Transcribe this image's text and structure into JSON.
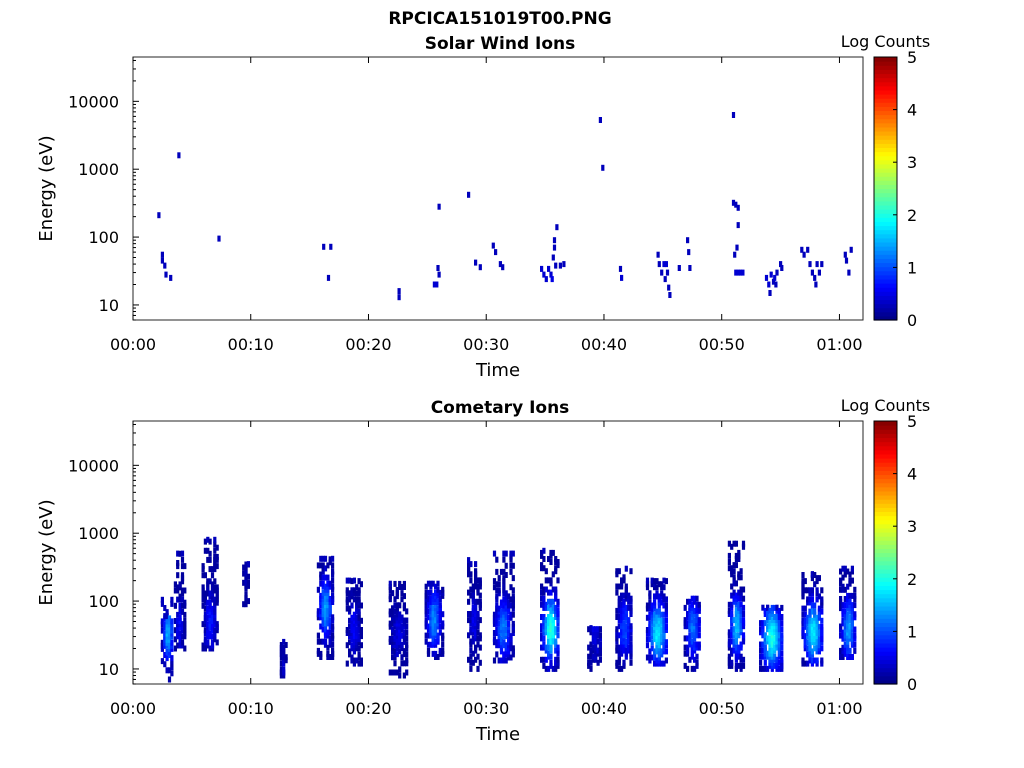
{
  "figure": {
    "title": "RPCICA151019T00.PNG"
  },
  "chart_data": [
    {
      "type": "heatmap",
      "title": "Solar Wind Ions",
      "xlabel": "Time",
      "ylabel": "Energy (eV)",
      "x_scale": "time",
      "y_scale": "log",
      "xlim": [
        "00:00",
        "01:02"
      ],
      "ylim": [
        6,
        45000
      ],
      "xticks": [
        "00:00",
        "00:10",
        "00:20",
        "00:30",
        "00:40",
        "00:50",
        "01:00"
      ],
      "yticks": [
        10,
        100,
        1000,
        10000
      ],
      "ytick_labels": [
        "10",
        "100",
        "1000",
        "10000"
      ],
      "grid": false,
      "colorbar": {
        "title": "Log Counts",
        "range": [
          0,
          5
        ],
        "ticks": [
          "0",
          "1",
          "2",
          "3",
          "4",
          "5"
        ],
        "colormap": [
          "#00007f",
          "#0000ff",
          "#007fff",
          "#00ffff",
          "#7fff7f",
          "#ffff00",
          "#ff7f00",
          "#ff0000",
          "#7f0000"
        ]
      },
      "points": [
        [
          2.2,
          210,
          0.3
        ],
        [
          2.5,
          55,
          0.3
        ],
        [
          2.5,
          45,
          0.3
        ],
        [
          2.7,
          38,
          0.3
        ],
        [
          2.8,
          28,
          0.3
        ],
        [
          3.2,
          25,
          0.3
        ],
        [
          3.9,
          1600,
          0.3
        ],
        [
          7.3,
          95,
          0.3
        ],
        [
          16.2,
          72,
          0.3
        ],
        [
          16.8,
          72,
          0.3
        ],
        [
          16.6,
          25,
          0.3
        ],
        [
          22.6,
          16,
          0.3
        ],
        [
          22.6,
          13,
          0.3
        ],
        [
          25.6,
          20,
          0.4
        ],
        [
          25.8,
          20,
          0.4
        ],
        [
          25.9,
          35,
          0.3
        ],
        [
          26.0,
          28,
          0.3
        ],
        [
          26.0,
          280,
          0.3
        ],
        [
          28.5,
          420,
          0.3
        ],
        [
          29.1,
          42,
          0.3
        ],
        [
          29.5,
          36,
          0.3
        ],
        [
          30.6,
          75,
          0.3
        ],
        [
          30.8,
          60,
          0.3
        ],
        [
          31.2,
          40,
          0.3
        ],
        [
          31.4,
          36,
          0.3
        ],
        [
          34.7,
          34,
          0.4
        ],
        [
          34.9,
          28,
          0.4
        ],
        [
          35.1,
          24,
          0.4
        ],
        [
          35.3,
          34,
          0.4
        ],
        [
          35.5,
          28,
          0.4
        ],
        [
          35.6,
          24,
          0.5
        ],
        [
          35.7,
          50,
          0.3
        ],
        [
          35.8,
          70,
          0.3
        ],
        [
          35.8,
          90,
          0.3
        ],
        [
          35.9,
          38,
          0.3
        ],
        [
          36.0,
          140,
          0.3
        ],
        [
          36.3,
          38,
          0.3
        ],
        [
          36.6,
          40,
          0.3
        ],
        [
          39.7,
          5300,
          0.3
        ],
        [
          39.9,
          1050,
          0.3
        ],
        [
          41.4,
          34,
          0.3
        ],
        [
          41.5,
          25,
          0.4
        ],
        [
          44.6,
          55,
          0.3
        ],
        [
          44.7,
          40,
          0.3
        ],
        [
          44.9,
          30,
          0.3
        ],
        [
          45.1,
          40,
          0.4
        ],
        [
          45.2,
          24,
          0.3
        ],
        [
          45.3,
          40,
          0.4
        ],
        [
          45.4,
          30,
          0.3
        ],
        [
          45.5,
          18,
          0.3
        ],
        [
          45.6,
          14,
          0.3
        ],
        [
          46.4,
          35,
          0.3
        ],
        [
          47.1,
          90,
          0.3
        ],
        [
          47.2,
          60,
          0.3
        ],
        [
          47.3,
          35,
          0.3
        ],
        [
          51.0,
          6300,
          0.3
        ],
        [
          51.0,
          320,
          0.3
        ],
        [
          51.2,
          300,
          0.3
        ],
        [
          51.4,
          150,
          0.3
        ],
        [
          51.3,
          70,
          0.3
        ],
        [
          51.1,
          55,
          0.3
        ],
        [
          51.4,
          270,
          0.3
        ],
        [
          51.2,
          30,
          0.4
        ],
        [
          51.4,
          30,
          0.4
        ],
        [
          51.6,
          30,
          0.4
        ],
        [
          51.8,
          30,
          0.4
        ],
        [
          53.8,
          25,
          0.4
        ],
        [
          54.0,
          20,
          0.4
        ],
        [
          54.1,
          15,
          0.3
        ],
        [
          54.2,
          28,
          0.4
        ],
        [
          54.4,
          22,
          0.3
        ],
        [
          54.5,
          25,
          0.4
        ],
        [
          54.6,
          20,
          0.3
        ],
        [
          54.7,
          30,
          0.3
        ],
        [
          55.0,
          40,
          0.3
        ],
        [
          55.1,
          35,
          0.3
        ],
        [
          56.8,
          65,
          0.3
        ],
        [
          57.0,
          55,
          0.3
        ],
        [
          57.3,
          65,
          0.3
        ],
        [
          57.5,
          40,
          0.3
        ],
        [
          57.7,
          30,
          0.3
        ],
        [
          57.9,
          25,
          0.3
        ],
        [
          58.0,
          20,
          0.3
        ],
        [
          58.1,
          40,
          0.3
        ],
        [
          58.3,
          30,
          0.3
        ],
        [
          58.5,
          40,
          0.3
        ],
        [
          60.5,
          55,
          0.3
        ],
        [
          60.6,
          45,
          0.3
        ],
        [
          61.0,
          65,
          0.3
        ],
        [
          60.8,
          30,
          0.3
        ]
      ]
    },
    {
      "type": "heatmap",
      "title": "Cometary Ions",
      "xlabel": "Time",
      "ylabel": "Energy (eV)",
      "x_scale": "time",
      "y_scale": "log",
      "xlim": [
        "00:00",
        "01:02"
      ],
      "ylim": [
        6,
        45000
      ],
      "xticks": [
        "00:00",
        "00:10",
        "00:20",
        "00:30",
        "00:40",
        "00:50",
        "01:00"
      ],
      "yticks": [
        10,
        100,
        1000,
        10000
      ],
      "ytick_labels": [
        "10",
        "100",
        "1000",
        "10000"
      ],
      "grid": false,
      "colorbar": {
        "title": "Log Counts",
        "range": [
          0,
          5
        ],
        "ticks": [
          "0",
          "1",
          "2",
          "3",
          "4",
          "5"
        ],
        "colormap": [
          "#00007f",
          "#0000ff",
          "#007fff",
          "#00ffff",
          "#7fff7f",
          "#ffff00",
          "#ff7f00",
          "#ff0000",
          "#7f0000"
        ]
      },
      "bursts": [
        {
          "t": 3.0,
          "width": 1.0,
          "e_lo": 7,
          "e_hi": 60,
          "peak_e": 35,
          "peak": 1.5,
          "scatter_hi": 120
        },
        {
          "t": 4.0,
          "width": 0.8,
          "e_lo": 20,
          "e_hi": 500,
          "peak_e": 45,
          "peak": 0.6,
          "scatter_hi": 550
        },
        {
          "t": 6.6,
          "width": 1.3,
          "e_lo": 20,
          "e_hi": 800,
          "peak_e": 50,
          "peak": 0.7,
          "scatter_hi": 800
        },
        {
          "t": 9.6,
          "width": 0.4,
          "e_lo": 90,
          "e_hi": 350,
          "peak_e": 300,
          "peak": 0.2,
          "scatter_hi": 350
        },
        {
          "t": 12.8,
          "width": 0.4,
          "e_lo": 8,
          "e_hi": 25,
          "peak_e": 15,
          "peak": 0.3,
          "scatter_hi": 25
        },
        {
          "t": 16.4,
          "width": 1.3,
          "e_lo": 15,
          "e_hi": 420,
          "peak_e": 80,
          "peak": 1.4,
          "scatter_hi": 420
        },
        {
          "t": 18.8,
          "width": 1.2,
          "e_lo": 12,
          "e_hi": 200,
          "peak_e": 40,
          "peak": 0.6,
          "scatter_hi": 200
        },
        {
          "t": 22.6,
          "width": 1.5,
          "e_lo": 8,
          "e_hi": 180,
          "peak_e": 35,
          "peak": 0.5,
          "scatter_hi": 180
        },
        {
          "t": 25.6,
          "width": 1.4,
          "e_lo": 15,
          "e_hi": 180,
          "peak_e": 55,
          "peak": 1.3,
          "scatter_hi": 180
        },
        {
          "t": 29.0,
          "width": 1.0,
          "e_lo": 10,
          "e_hi": 350,
          "peak_e": 50,
          "peak": 0.5,
          "scatter_hi": 450
        },
        {
          "t": 31.5,
          "width": 1.6,
          "e_lo": 12,
          "e_hi": 500,
          "peak_e": 40,
          "peak": 1.2,
          "scatter_hi": 550
        },
        {
          "t": 35.5,
          "width": 1.6,
          "e_lo": 10,
          "e_hi": 550,
          "peak_e": 40,
          "peak": 2.1,
          "scatter_hi": 550
        },
        {
          "t": 39.3,
          "width": 1.2,
          "e_lo": 10,
          "e_hi": 40,
          "peak_e": 35,
          "peak": 0.5,
          "scatter_hi": 40
        },
        {
          "t": 41.8,
          "width": 1.4,
          "e_lo": 10,
          "e_hi": 300,
          "peak_e": 40,
          "peak": 1.0,
          "scatter_hi": 320
        },
        {
          "t": 44.6,
          "width": 1.8,
          "e_lo": 12,
          "e_hi": 200,
          "peak_e": 35,
          "peak": 1.8,
          "scatter_hi": 200
        },
        {
          "t": 47.6,
          "width": 1.4,
          "e_lo": 10,
          "e_hi": 120,
          "peak_e": 40,
          "peak": 1.2,
          "scatter_hi": 120
        },
        {
          "t": 51.3,
          "width": 1.3,
          "e_lo": 10,
          "e_hi": 700,
          "peak_e": 45,
          "peak": 1.6,
          "scatter_hi": 700
        },
        {
          "t": 54.3,
          "width": 2.0,
          "e_lo": 10,
          "e_hi": 80,
          "peak_e": 30,
          "peak": 2.0,
          "scatter_hi": 80
        },
        {
          "t": 57.8,
          "width": 1.8,
          "e_lo": 12,
          "e_hi": 250,
          "peak_e": 35,
          "peak": 1.8,
          "scatter_hi": 250
        },
        {
          "t": 60.8,
          "width": 1.4,
          "e_lo": 15,
          "e_hi": 300,
          "peak_e": 40,
          "peak": 1.4,
          "scatter_hi": 300
        }
      ]
    }
  ]
}
